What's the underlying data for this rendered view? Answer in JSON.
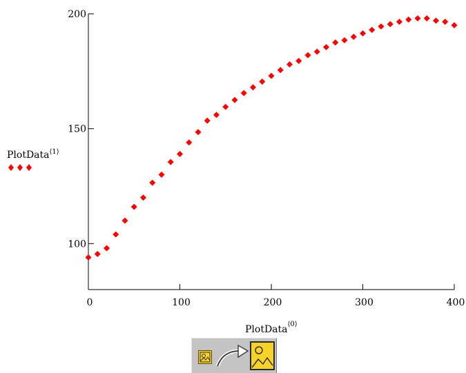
{
  "chart_data": {
    "type": "scatter",
    "title": "",
    "xlabel": "PlotData",
    "xlabel_superscript": "⟨0⟩",
    "ylabel": "PlotData",
    "ylabel_superscript": "⟨1⟩",
    "xlim": [
      0,
      400
    ],
    "ylim": [
      80,
      200
    ],
    "x_ticks": [
      0,
      100,
      200,
      300,
      400
    ],
    "y_ticks": [
      100,
      150,
      200
    ],
    "grid": false,
    "legend": "left",
    "marker": "diamond",
    "marker_color": "#ff0000",
    "series": [
      {
        "name": "PlotData⟨1⟩",
        "x": [
          0,
          10,
          20,
          30,
          40,
          50,
          60,
          70,
          80,
          90,
          100,
          110,
          120,
          130,
          140,
          150,
          160,
          170,
          180,
          190,
          200,
          210,
          220,
          230,
          240,
          250,
          260,
          270,
          280,
          290,
          300,
          310,
          320,
          330,
          340,
          350,
          360,
          370,
          380,
          390,
          400
        ],
        "y": [
          94,
          95.5,
          98,
          104,
          110,
          116,
          120,
          126.5,
          130,
          135.5,
          139,
          144,
          148.5,
          153.5,
          156,
          159.5,
          162.5,
          165.5,
          168,
          170.5,
          173,
          175.5,
          178,
          179.5,
          182,
          183.5,
          185.5,
          187.5,
          188.5,
          190,
          191.5,
          193,
          194.5,
          195.5,
          196.5,
          197.5,
          198,
          198,
          197,
          196.5,
          195
        ]
      }
    ]
  },
  "toolbar": {
    "small_icon": "image-icon",
    "arrow_icon": "curved-arrow-icon",
    "large_icon": "image-icon"
  }
}
